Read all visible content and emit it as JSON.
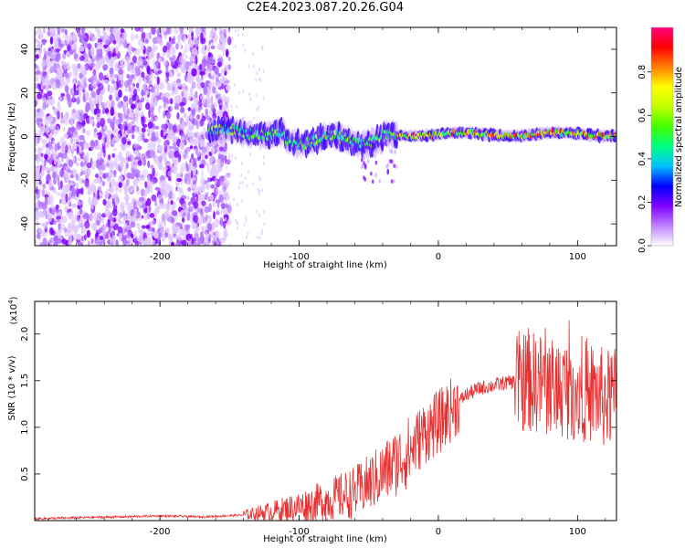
{
  "title": "C2E4.2023.087.20.26.G04",
  "chart_data": [
    {
      "type": "heatmap",
      "xlabel": "Height of straight line (km)",
      "ylabel": "Frequency (Hz)",
      "xlim": [
        -290,
        128
      ],
      "ylim": [
        -50,
        50
      ],
      "xticks": [
        -200,
        -100,
        0,
        100
      ],
      "yticks": [
        -40,
        -20,
        0,
        20,
        40
      ],
      "colorbar": {
        "label": "Normalized spectral amplitude",
        "range": [
          0,
          1
        ],
        "ticks": [
          "0.0",
          "0.2",
          "0.4",
          "0.6",
          "0.8"
        ],
        "colors": [
          "#ffffff",
          "#c080ff",
          "#8000ff",
          "#0000ff",
          "#00c0ff",
          "#00ff80",
          "#40ff00",
          "#c0ff00",
          "#ffff00",
          "#ff8000",
          "#ff0000",
          "#ff0080"
        ]
      },
      "features": {
        "noise_region_x": [
          -290,
          -160
        ],
        "band_start_x": -165,
        "band_center_freq": 0
      }
    },
    {
      "type": "line",
      "xlabel": "Height of straight line (km)",
      "ylabel": "SNR (10 * v/v)",
      "yscale_label": "(x10",
      "yscale_exp": "4",
      "xlim": [
        -290,
        128
      ],
      "ylim": [
        0,
        2.35
      ],
      "xticks": [
        -200,
        -100,
        0,
        100
      ],
      "yticks": [
        "0.5",
        "1.0",
        "1.5",
        "2.0"
      ],
      "line_color": "#e83030",
      "x": [
        -290,
        -260,
        -230,
        -200,
        -170,
        -140,
        -120,
        -100,
        -80,
        -60,
        -40,
        -20,
        -10,
        0,
        10,
        20,
        30,
        40,
        50,
        60,
        70,
        80,
        90,
        100,
        110,
        120,
        128
      ],
      "y": [
        0.02,
        0.03,
        0.04,
        0.05,
        0.04,
        0.06,
        0.1,
        0.15,
        0.22,
        0.3,
        0.5,
        0.75,
        0.95,
        1.05,
        1.2,
        1.35,
        1.42,
        1.45,
        1.48,
        1.5,
        1.48,
        1.45,
        1.42,
        1.4,
        1.38,
        1.3,
        1.3
      ]
    }
  ]
}
